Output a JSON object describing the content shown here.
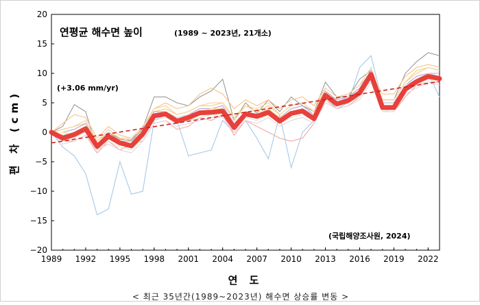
{
  "chart_data": {
    "type": "line",
    "title": "연평균 해수면 높이",
    "subtitle": "(1989 ~ 2023년, 21개소)",
    "trend_label": "(+3.06 mm/yr)",
    "source": "(국립해양조사원, 2024)",
    "xlabel": "연 도",
    "ylabel": "편 차 (cm)",
    "caption": "< 최근 35년간(1989~2023년) 해수면 상승률 변동 >",
    "xlim": [
      1989,
      2023
    ],
    "ylim": [
      -20,
      20
    ],
    "x_ticks": [
      "1989",
      "1992",
      "1995",
      "1998",
      "2001",
      "2004",
      "2007",
      "2010",
      "2013",
      "2016",
      "2019",
      "2022"
    ],
    "y_ticks": [
      "20",
      "15",
      "10",
      "5",
      "0",
      "−5",
      "−10",
      "−15",
      "−20"
    ],
    "x": [
      1989,
      1990,
      1991,
      1992,
      1993,
      1994,
      1995,
      1996,
      1997,
      1998,
      1999,
      2000,
      2001,
      2002,
      2003,
      2004,
      2005,
      2006,
      2007,
      2008,
      2009,
      2010,
      2011,
      2012,
      2013,
      2014,
      2015,
      2016,
      2017,
      2018,
      2019,
      2020,
      2021,
      2022,
      2023
    ],
    "mean_series": {
      "color": "#e8322d",
      "values": [
        0,
        -1.0,
        -0.4,
        0.6,
        -2.4,
        -0.7,
        -1.8,
        -2.3,
        -0.3,
        2.8,
        3.1,
        1.9,
        2.5,
        3.3,
        3.4,
        3.6,
        0.8,
        3.1,
        2.7,
        3.4,
        1.9,
        3.2,
        3.6,
        2.3,
        6.3,
        4.8,
        5.4,
        6.7,
        9.8,
        4.2,
        4.2,
        7.3,
        8.6,
        9.5,
        9.1
      ]
    },
    "trend": {
      "color": "#cc1f1f",
      "start": -1.8,
      "end": 8.6
    },
    "station_series": [
      {
        "color": "#a7c7e7",
        "values": [
          0,
          -2.5,
          -4,
          -7,
          -14,
          -13,
          -5,
          -10.5,
          -10,
          2,
          3,
          2,
          -4,
          -3.5,
          -3,
          2,
          0,
          2,
          -1,
          -4.5,
          3,
          -6,
          0,
          2,
          6,
          4,
          5,
          11,
          13,
          5,
          5,
          7,
          9,
          10,
          6
        ]
      },
      {
        "color": "#999999",
        "values": [
          0,
          1,
          4.7,
          3.5,
          -2.8,
          0,
          -1.2,
          -1.3,
          0.7,
          6,
          6,
          5,
          4.5,
          6,
          7,
          9,
          2,
          5,
          3.2,
          5.5,
          3.5,
          6,
          4.5,
          3.5,
          8.5,
          6,
          6,
          9,
          10.5,
          5.5,
          5.5,
          10,
          12,
          13.5,
          13
        ]
      },
      {
        "color": "#f4a6a0",
        "values": [
          0,
          -1.5,
          -1.5,
          -0.5,
          -3.5,
          -1.5,
          -3,
          -2,
          -1.5,
          1.5,
          2,
          0.5,
          1,
          2.5,
          2,
          3,
          -0.5,
          2,
          1,
          0,
          -1,
          -1.5,
          -1,
          1.5,
          5.5,
          4,
          4.5,
          6,
          9,
          3.5,
          3.5,
          6,
          8,
          8.5,
          8.5
        ]
      },
      {
        "color": "#f8c28a",
        "values": [
          0,
          1.5,
          3,
          2.5,
          -1,
          1,
          -0.5,
          -1,
          0.5,
          4,
          5,
          4,
          4.5,
          6.5,
          7.5,
          6.5,
          4,
          5.5,
          4.5,
          5.5,
          4,
          5.5,
          6,
          4.5,
          7.5,
          6,
          6.5,
          8,
          10,
          6.5,
          6.5,
          9.5,
          11,
          11.5,
          11
        ]
      },
      {
        "color": "#f2d26b",
        "values": [
          0,
          0.5,
          1,
          1.5,
          -1.5,
          0,
          -1,
          -1.5,
          0,
          3.5,
          4,
          3,
          3.5,
          4.5,
          4.5,
          5,
          2.5,
          4.5,
          3.5,
          4.5,
          3,
          4.5,
          5,
          3.5,
          7,
          5.5,
          6,
          7.5,
          9.5,
          5.5,
          5.5,
          8.5,
          10.5,
          11,
          10.5
        ]
      },
      {
        "color": "#c5e0b4",
        "values": [
          0,
          -0.5,
          0,
          1,
          -2,
          -0.5,
          -1.5,
          -2,
          -0.5,
          2.5,
          3,
          1.5,
          2,
          3,
          3,
          3.5,
          0.5,
          3,
          2.5,
          3,
          1.5,
          3,
          3.5,
          2,
          6,
          4.5,
          5,
          6.5,
          9.5,
          4,
          4,
          7,
          8.5,
          9,
          9
        ]
      },
      {
        "color": "#9fc5e8",
        "values": [
          0,
          -1,
          -0.5,
          0.5,
          -2.5,
          -1,
          -2,
          -2.5,
          -0.5,
          2.5,
          3,
          2,
          2.5,
          3,
          3.5,
          3.5,
          1,
          3,
          2.5,
          3.5,
          2,
          3,
          3.5,
          2.5,
          6,
          4.5,
          5.5,
          6.5,
          9.5,
          4,
          4,
          7,
          8.5,
          9.5,
          9
        ]
      },
      {
        "color": "#b4a7d6",
        "values": [
          0,
          0,
          0.5,
          1.5,
          -2,
          0,
          -1.5,
          -1.5,
          0.5,
          3.5,
          3.5,
          2.5,
          3,
          4,
          4,
          4.5,
          1.5,
          3.5,
          3,
          4,
          2.5,
          4,
          4.5,
          3,
          7,
          5.5,
          6,
          7.5,
          10.5,
          5,
          5,
          8,
          9.5,
          10,
          10
        ]
      },
      {
        "color": "#ead1dc",
        "values": [
          0,
          -2,
          -1.5,
          -0.5,
          -3,
          -2,
          -3,
          -3.5,
          -1.5,
          1.5,
          2,
          1,
          1.5,
          2,
          2.5,
          2.5,
          0,
          2,
          1.5,
          2.5,
          1,
          2,
          2.5,
          1.5,
          5,
          4,
          4.5,
          5.5,
          8.5,
          3.5,
          3.5,
          6.5,
          7.5,
          8.5,
          8
        ]
      },
      {
        "color": "#d9ead3",
        "values": [
          0,
          -1.5,
          -1,
          0,
          -3,
          -1.5,
          -2.5,
          -3,
          -1,
          2,
          2.5,
          1.5,
          2,
          2.5,
          3,
          3,
          0.5,
          2.5,
          2,
          3,
          1.5,
          2.5,
          3,
          2,
          5.5,
          4.5,
          5,
          6,
          9,
          3.5,
          4,
          7,
          8,
          9,
          8.5
        ]
      },
      {
        "color": "#ffe599",
        "values": [
          0,
          0,
          -0.5,
          0.5,
          -2,
          -0.5,
          -1.5,
          -2,
          0,
          3,
          3.5,
          2.5,
          3,
          3.5,
          4,
          4,
          1.5,
          3.5,
          3,
          4,
          2.5,
          3.5,
          4,
          3,
          6.5,
          5,
          6,
          7,
          10,
          4.5,
          4.5,
          7.5,
          9,
          10,
          9.5
        ]
      },
      {
        "color": "#e6b8af",
        "values": [
          0,
          -0.5,
          -0.5,
          0.5,
          -2.5,
          -1,
          -2,
          -2.5,
          -0.5,
          3,
          3,
          2,
          2.5,
          3.5,
          3.5,
          3.5,
          1,
          3.5,
          3,
          3.5,
          2,
          3.5,
          4,
          2.5,
          6.5,
          5,
          5.5,
          7,
          10,
          4.5,
          4.5,
          7.5,
          9,
          9.5,
          9.5
        ]
      },
      {
        "color": "#cfe2f3",
        "values": [
          0,
          -1,
          0,
          1,
          -2,
          -0.5,
          -2,
          -2,
          0,
          3,
          3.5,
          2.5,
          3,
          3.5,
          3.5,
          4,
          1.5,
          3.5,
          3,
          3.5,
          2,
          3.5,
          4,
          3,
          6.5,
          5,
          6,
          7,
          10,
          4.5,
          4.5,
          8,
          9,
          10,
          9.5
        ]
      },
      {
        "color": "#f9cb9c",
        "values": [
          0,
          0.5,
          1,
          2,
          -1.5,
          0.5,
          -1,
          -1,
          1,
          4,
          4.5,
          3,
          3.5,
          4.5,
          5,
          5,
          2,
          4.5,
          4,
          5,
          3,
          4.5,
          5,
          3.5,
          7.5,
          6,
          6.5,
          8,
          11,
          5.5,
          5.5,
          8.5,
          10,
          11,
          10.5
        ]
      }
    ]
  }
}
